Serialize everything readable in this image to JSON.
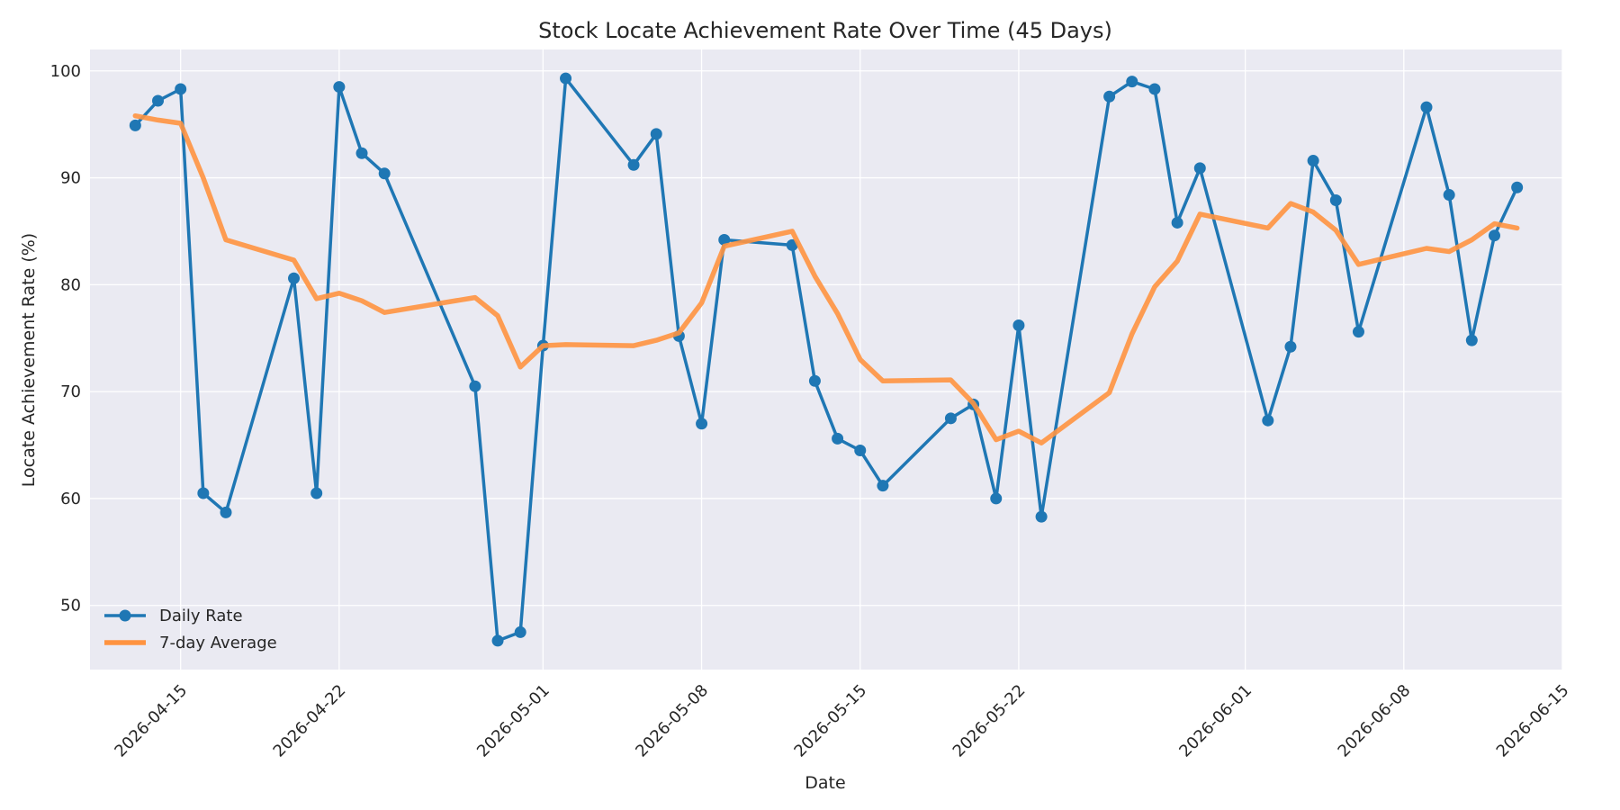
{
  "chart_data": {
    "type": "line",
    "title": "Stock Locate Achievement Rate Over Time (45 Days)",
    "xlabel": "Date",
    "ylabel": "Locate Achievement Rate (%)",
    "xlim": [
      "2026-04-11",
      "2026-06-15"
    ],
    "ylim": [
      44,
      102
    ],
    "x_ticks": [
      "2026-04-15",
      "2026-04-22",
      "2026-05-01",
      "2026-05-08",
      "2026-05-15",
      "2026-05-22",
      "2026-06-01",
      "2026-06-08",
      "2026-06-15"
    ],
    "y_ticks": [
      50,
      60,
      70,
      80,
      90,
      100
    ],
    "grid": true,
    "legend_position": "lower-left",
    "series": [
      {
        "name": "Daily Rate",
        "color": "#1f77b4",
        "marker": "circle",
        "points": [
          [
            "2026-04-13",
            94.9
          ],
          [
            "2026-04-14",
            97.2
          ],
          [
            "2026-04-15",
            98.3
          ],
          [
            "2026-04-16",
            60.5
          ],
          [
            "2026-04-17",
            58.7
          ],
          [
            "2026-04-20",
            80.6
          ],
          [
            "2026-04-21",
            60.5
          ],
          [
            "2026-04-22",
            98.5
          ],
          [
            "2026-04-23",
            92.3
          ],
          [
            "2026-04-24",
            90.4
          ],
          [
            "2026-04-28",
            70.5
          ],
          [
            "2026-04-29",
            46.7
          ],
          [
            "2026-04-30",
            47.5
          ],
          [
            "2026-05-01",
            74.3
          ],
          [
            "2026-05-02",
            99.3
          ],
          [
            "2026-05-05",
            91.2
          ],
          [
            "2026-05-06",
            94.1
          ],
          [
            "2026-05-07",
            75.2
          ],
          [
            "2026-05-08",
            67.0
          ],
          [
            "2026-05-09",
            84.2
          ],
          [
            "2026-05-12",
            83.7
          ],
          [
            "2026-05-13",
            71.0
          ],
          [
            "2026-05-14",
            65.6
          ],
          [
            "2026-05-15",
            64.5
          ],
          [
            "2026-05-16",
            61.2
          ],
          [
            "2026-05-19",
            67.5
          ],
          [
            "2026-05-20",
            68.8
          ],
          [
            "2026-05-21",
            60.0
          ],
          [
            "2026-05-22",
            76.2
          ],
          [
            "2026-05-23",
            58.3
          ],
          [
            "2026-05-26",
            97.6
          ],
          [
            "2026-05-27",
            99.0
          ],
          [
            "2026-05-28",
            98.3
          ],
          [
            "2026-05-29",
            85.8
          ],
          [
            "2026-05-30",
            90.9
          ],
          [
            "2026-06-02",
            67.3
          ],
          [
            "2026-06-03",
            74.2
          ],
          [
            "2026-06-04",
            91.6
          ],
          [
            "2026-06-05",
            87.9
          ],
          [
            "2026-06-06",
            75.6
          ],
          [
            "2026-06-09",
            96.6
          ],
          [
            "2026-06-10",
            88.4
          ],
          [
            "2026-06-11",
            74.8
          ],
          [
            "2026-06-12",
            84.6
          ],
          [
            "2026-06-13",
            89.1
          ]
        ]
      },
      {
        "name": "7-day Average",
        "color": "#ff9340",
        "marker": "none",
        "points": [
          [
            "2026-04-13",
            95.8
          ],
          [
            "2026-04-14",
            95.4
          ],
          [
            "2026-04-15",
            95.1
          ],
          [
            "2026-04-16",
            90.0
          ],
          [
            "2026-04-17",
            84.2
          ],
          [
            "2026-04-20",
            82.3
          ],
          [
            "2026-04-21",
            78.7
          ],
          [
            "2026-04-22",
            79.2
          ],
          [
            "2026-04-23",
            78.5
          ],
          [
            "2026-04-24",
            77.4
          ],
          [
            "2026-04-28",
            78.8
          ],
          [
            "2026-04-29",
            77.1
          ],
          [
            "2026-04-30",
            72.3
          ],
          [
            "2026-05-01",
            74.3
          ],
          [
            "2026-05-02",
            74.4
          ],
          [
            "2026-05-05",
            74.3
          ],
          [
            "2026-05-06",
            74.8
          ],
          [
            "2026-05-07",
            75.5
          ],
          [
            "2026-05-08",
            78.3
          ],
          [
            "2026-05-09",
            83.6
          ],
          [
            "2026-05-12",
            85.0
          ],
          [
            "2026-05-13",
            80.8
          ],
          [
            "2026-05-14",
            77.3
          ],
          [
            "2026-05-15",
            73.0
          ],
          [
            "2026-05-16",
            71.0
          ],
          [
            "2026-05-19",
            71.1
          ],
          [
            "2026-05-20",
            68.9
          ],
          [
            "2026-05-21",
            65.5
          ],
          [
            "2026-05-22",
            66.3
          ],
          [
            "2026-05-23",
            65.2
          ],
          [
            "2026-05-26",
            69.9
          ],
          [
            "2026-05-27",
            75.4
          ],
          [
            "2026-05-28",
            79.8
          ],
          [
            "2026-05-29",
            82.2
          ],
          [
            "2026-05-30",
            86.6
          ],
          [
            "2026-06-02",
            85.3
          ],
          [
            "2026-06-03",
            87.6
          ],
          [
            "2026-06-04",
            86.8
          ],
          [
            "2026-06-05",
            85.1
          ],
          [
            "2026-06-06",
            81.9
          ],
          [
            "2026-06-09",
            83.4
          ],
          [
            "2026-06-10",
            83.1
          ],
          [
            "2026-06-11",
            84.2
          ],
          [
            "2026-06-12",
            85.7
          ],
          [
            "2026-06-13",
            85.3
          ]
        ]
      }
    ]
  }
}
